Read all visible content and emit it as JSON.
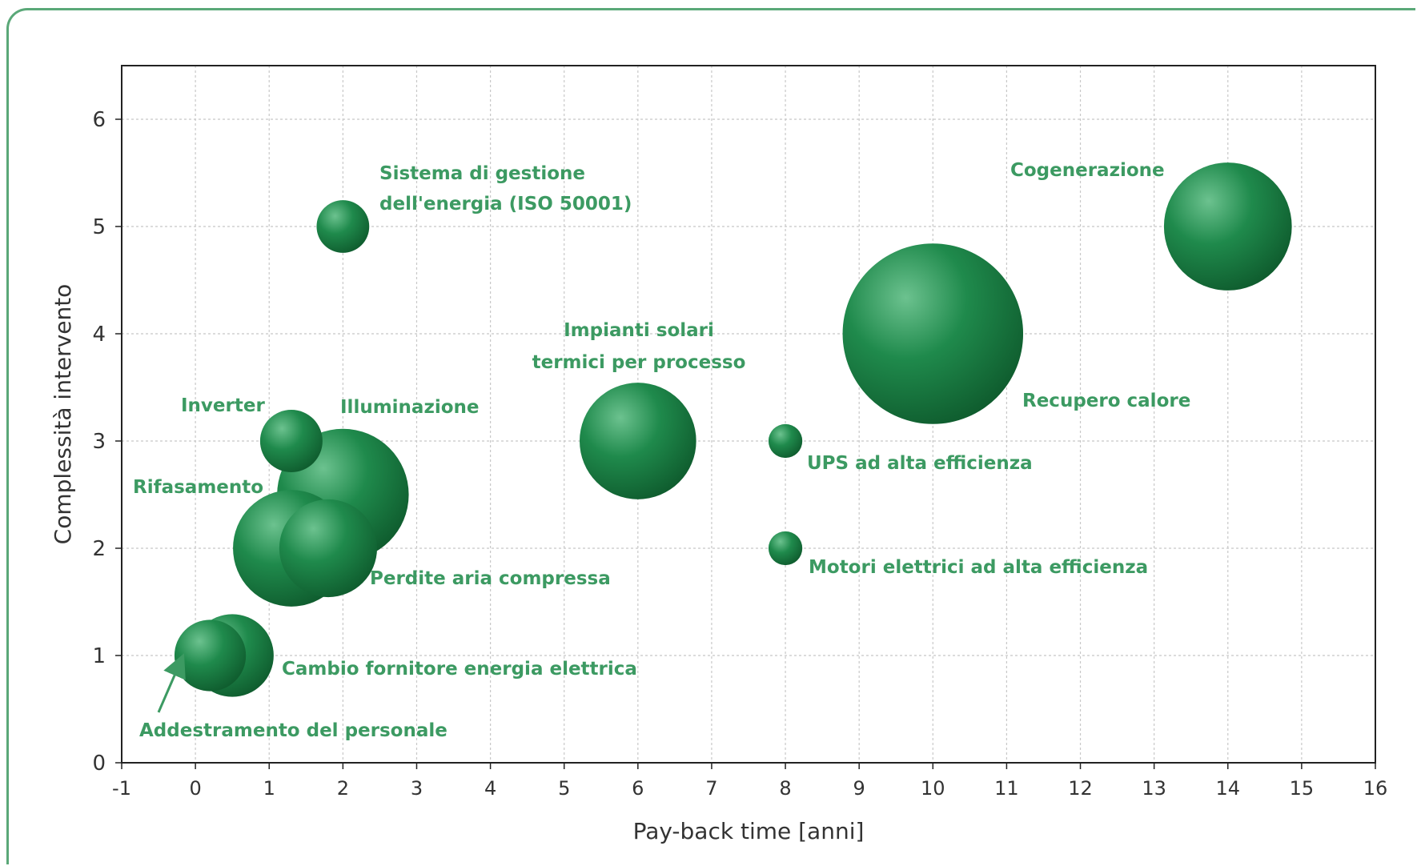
{
  "colors": {
    "bubble": "#1f8a4c",
    "bubble_dark": "#0f5c2e",
    "bubble_light": "#6cc28f",
    "label": "#3c9a62",
    "frame": "#5aa878",
    "grid": "#c8c8c8",
    "axis_text": "#333333"
  },
  "chart_data": {
    "type": "bubble",
    "title": "",
    "xlabel": "Pay-back time [anni]",
    "ylabel": "Complessità intervento",
    "xlim": [
      -1,
      16
    ],
    "ylim": [
      0,
      6.5
    ],
    "x_ticks": [
      "-1",
      "0",
      "1",
      "2",
      "3",
      "4",
      "5",
      "6",
      "7",
      "8",
      "9",
      "10",
      "11",
      "12",
      "13",
      "14",
      "15",
      "16"
    ],
    "y_ticks": [
      "0",
      "1",
      "2",
      "3",
      "4",
      "5",
      "6"
    ],
    "grid": true,
    "legend": "none",
    "points": [
      {
        "label": "Addestramento del personale",
        "x": 0.2,
        "y": 1.0,
        "size": 0.95
      },
      {
        "label": "Cambio fornitore energia elettrica",
        "x": 0.5,
        "y": 1.0,
        "size": 1.1
      },
      {
        "label": "Inverter",
        "x": 1.3,
        "y": 3.0,
        "size": 0.83
      },
      {
        "label": "Illuminazione",
        "x": 2.0,
        "y": 2.5,
        "size": 1.75
      },
      {
        "label": "Perdite aria compressa",
        "x": 1.8,
        "y": 2.0,
        "size": 1.3
      },
      {
        "label": "Rifasamento",
        "x": 1.3,
        "y": 2.0,
        "size": 1.55
      },
      {
        "label": "Sistema di gestione dell'energia (ISO 50001)",
        "x": 2.0,
        "y": 5.0,
        "size": 0.7
      },
      {
        "label": "Impianti solari termici per processo",
        "x": 6.0,
        "y": 3.0,
        "size": 1.55
      },
      {
        "label": "UPS ad alta efficienza",
        "x": 8.0,
        "y": 3.0,
        "size": 0.45
      },
      {
        "label": "Motori elettrici ad alta efficienza",
        "x": 8.0,
        "y": 2.0,
        "size": 0.45
      },
      {
        "label": "Recupero calore",
        "x": 10.0,
        "y": 4.0,
        "size": 2.4
      },
      {
        "label": "Cogenerazione",
        "x": 14.0,
        "y": 5.0,
        "size": 1.7
      }
    ],
    "annotations": [
      {
        "text": "Sistema di gestione",
        "target": "Sistema di gestione dell'energia (ISO 50001)"
      },
      {
        "text": "dell'energia (ISO 50001)",
        "target": "Sistema di gestione dell'energia (ISO 50001)"
      },
      {
        "text": "Cogenerazione",
        "target": "Cogenerazione"
      },
      {
        "text": "Impianti solari",
        "target": "Impianti solari termici per processo"
      },
      {
        "text": "termici per processo",
        "target": "Impianti solari termici per processo"
      },
      {
        "text": "Recupero calore",
        "target": "Recupero calore"
      },
      {
        "text": "Inverter",
        "target": "Inverter"
      },
      {
        "text": "Illuminazione",
        "target": "Illuminazione"
      },
      {
        "text": "UPS ad alta efficienza",
        "target": "UPS ad alta efficienza"
      },
      {
        "text": "Rifasamento",
        "target": "Rifasamento"
      },
      {
        "text": "Perdite aria compressa",
        "target": "Perdite aria compressa"
      },
      {
        "text": "Motori elettrici ad alta efficienza",
        "target": "Motori elettrici ad alta efficienza"
      },
      {
        "text": "Cambio fornitore energia elettrica",
        "target": "Cambio fornitore energia elettrica"
      },
      {
        "text": "Addestramento del personale",
        "target": "Addestramento del personale",
        "arrow": true
      }
    ]
  }
}
